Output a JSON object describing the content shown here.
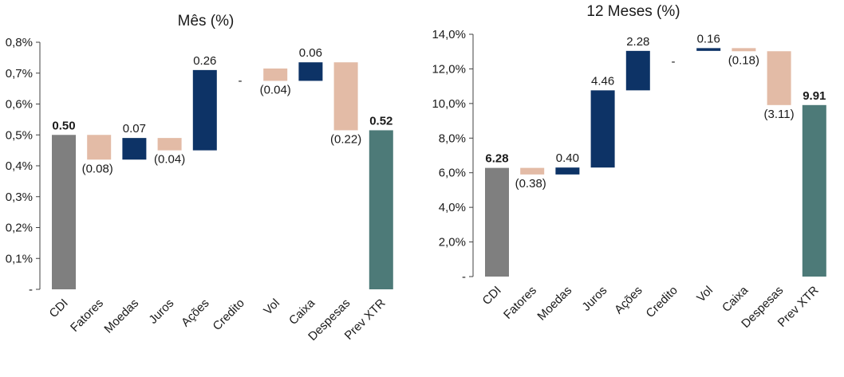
{
  "colors": {
    "cdi": "#7f7f7f",
    "negative": "#e3bba6",
    "positive": "#0d3366",
    "result": "#4d7a78",
    "axis": "#404040"
  },
  "chart_data": [
    {
      "type": "bar",
      "subtype": "waterfall",
      "title": "Mês (%)",
      "categories": [
        "CDI",
        "Fatores",
        "Moedas",
        "Juros",
        "Ações",
        "Credito",
        "Vol",
        "Caixa",
        "Despesas",
        "Prev XTR"
      ],
      "steps": [
        {
          "kind": "total",
          "start": 0,
          "end": 0.5,
          "label": "0.50",
          "bold": true
        },
        {
          "kind": "negative",
          "start": 0.5,
          "end": 0.42,
          "label": "(0.08)"
        },
        {
          "kind": "positive",
          "start": 0.42,
          "end": 0.49,
          "label": "0.07"
        },
        {
          "kind": "negative",
          "start": 0.49,
          "end": 0.45,
          "label": "(0.04)"
        },
        {
          "kind": "positive",
          "start": 0.45,
          "end": 0.71,
          "label": "0.26"
        },
        {
          "kind": "zero",
          "start": 0.71,
          "end": 0.71,
          "label": "-"
        },
        {
          "kind": "negative",
          "start": 0.715,
          "end": 0.675,
          "label": "(0.04)"
        },
        {
          "kind": "positive",
          "start": 0.675,
          "end": 0.735,
          "label": "0.06"
        },
        {
          "kind": "negative",
          "start": 0.735,
          "end": 0.515,
          "label": "(0.22)"
        },
        {
          "kind": "result",
          "start": 0,
          "end": 0.515,
          "label": "0.52",
          "bold": true
        }
      ],
      "y_ticks": [
        {
          "value": 0,
          "label": "-"
        },
        {
          "value": 0.1,
          "label": "0,1%"
        },
        {
          "value": 0.2,
          "label": "0,2%"
        },
        {
          "value": 0.3,
          "label": "0,3%"
        },
        {
          "value": 0.4,
          "label": "0,4%"
        },
        {
          "value": 0.5,
          "label": "0,5%"
        },
        {
          "value": 0.6,
          "label": "0,6%"
        },
        {
          "value": 0.7,
          "label": "0,7%"
        },
        {
          "value": 0.8,
          "label": "0,8%"
        }
      ],
      "ylim": [
        0,
        0.8
      ],
      "grid": false,
      "legend": "none"
    },
    {
      "type": "bar",
      "subtype": "waterfall",
      "title": "12 Meses (%)",
      "categories": [
        "CDI",
        "Fatores",
        "Moedas",
        "Juros",
        "Ações",
        "Credito",
        "Vol",
        "Caixa",
        "Despesas",
        "Prev XTR"
      ],
      "steps": [
        {
          "kind": "total",
          "start": 0,
          "end": 6.28,
          "label": "6.28",
          "bold": true
        },
        {
          "kind": "negative",
          "start": 6.28,
          "end": 5.9,
          "label": "(0.38)"
        },
        {
          "kind": "positive",
          "start": 5.9,
          "end": 6.3,
          "label": "0.40"
        },
        {
          "kind": "positive",
          "start": 6.3,
          "end": 10.76,
          "label": "4.46"
        },
        {
          "kind": "positive",
          "start": 10.76,
          "end": 13.04,
          "label": "2.28"
        },
        {
          "kind": "zero",
          "start": 13.04,
          "end": 13.04,
          "label": "-"
        },
        {
          "kind": "positive",
          "start": 13.04,
          "end": 13.2,
          "label": "0.16"
        },
        {
          "kind": "negative",
          "start": 13.2,
          "end": 13.02,
          "label": "(0.18)"
        },
        {
          "kind": "negative",
          "start": 13.02,
          "end": 9.91,
          "label": "(3.11)"
        },
        {
          "kind": "result",
          "start": 0,
          "end": 9.91,
          "label": "9.91",
          "bold": true
        }
      ],
      "y_ticks": [
        {
          "value": 0,
          "label": "-"
        },
        {
          "value": 2,
          "label": "2,0%"
        },
        {
          "value": 4,
          "label": "4,0%"
        },
        {
          "value": 6,
          "label": "6,0%"
        },
        {
          "value": 8,
          "label": "8,0%"
        },
        {
          "value": 10,
          "label": "10,0%"
        },
        {
          "value": 12,
          "label": "12,0%"
        },
        {
          "value": 14,
          "label": "14,0%"
        }
      ],
      "ylim": [
        0,
        14
      ],
      "grid": false,
      "legend": "none"
    }
  ]
}
